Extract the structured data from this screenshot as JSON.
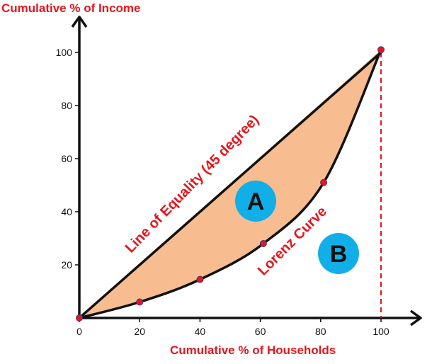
{
  "chart_data": {
    "type": "line",
    "ylabel": "Cumulative % of Income",
    "xlabel": "Cumulative % of Households",
    "xlim": [
      0,
      100
    ],
    "ylim": [
      0,
      100
    ],
    "x_ticks": [
      "0",
      "20",
      "40",
      "60",
      "80",
      "100"
    ],
    "y_ticks": [
      "20",
      "40",
      "60",
      "80",
      "100"
    ],
    "series": [
      {
        "name": "Line of Equality (45 degree)",
        "x": [
          0,
          100
        ],
        "y": [
          0,
          100
        ]
      },
      {
        "name": "Lorenz Curve",
        "x": [
          0,
          20,
          40,
          61,
          81,
          100
        ],
        "y": [
          0,
          6,
          14.5,
          28,
          51,
          101
        ]
      }
    ],
    "reference_line": {
      "x": 100,
      "style": "dashed"
    },
    "regions": [
      {
        "label": "A"
      },
      {
        "label": "B"
      }
    ],
    "colors": {
      "fill_area_A": "#f7bd90",
      "text_red": "#e8141b",
      "badge_blue": "#12aee8",
      "marker_red": "#e8141b",
      "axis": "#111111"
    }
  }
}
